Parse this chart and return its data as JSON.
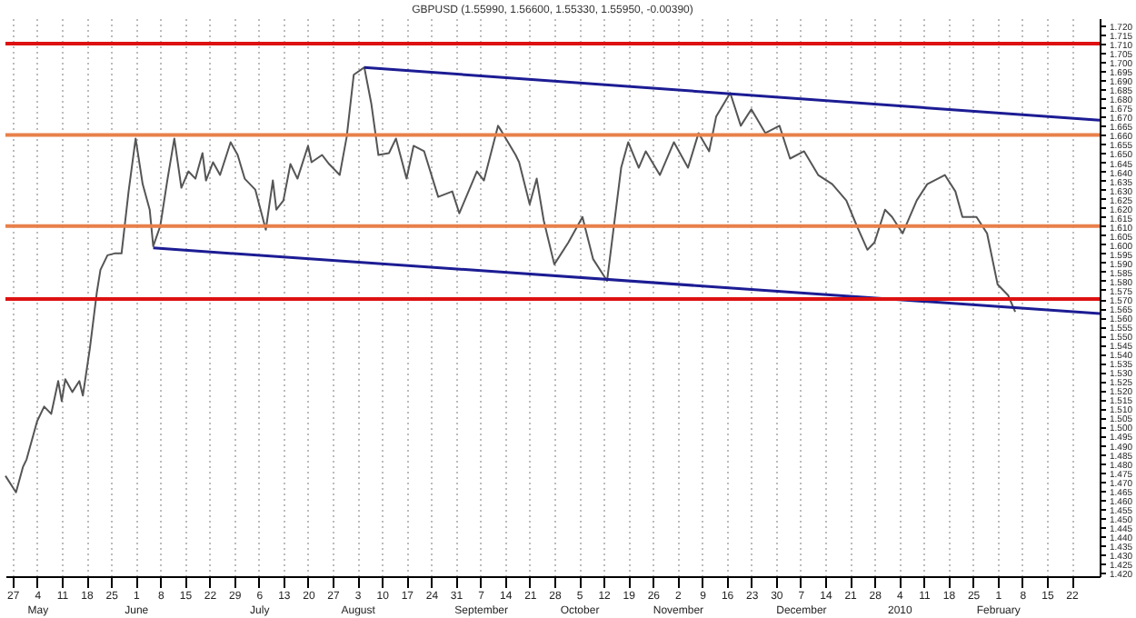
{
  "chart_data": {
    "type": "line",
    "title": "GBPUSD (1.55990, 1.56600, 1.55330, 1.55950, -0.00390)",
    "grid": "x",
    "xlim": [
      "2009-04-25",
      "2010-03-02"
    ],
    "ylim": [
      1.418,
      1.724
    ],
    "xticks": [
      {
        "value": "2009-04-27",
        "label": "27"
      },
      {
        "value": "2009-05-04",
        "label": "4\nMay"
      },
      {
        "value": "2009-05-11",
        "label": "11"
      },
      {
        "value": "2009-05-18",
        "label": "18"
      },
      {
        "value": "2009-05-25",
        "label": "25"
      },
      {
        "value": "2009-06-01",
        "label": "1\nJune"
      },
      {
        "value": "2009-06-08",
        "label": "8"
      },
      {
        "value": "2009-06-15",
        "label": "15"
      },
      {
        "value": "2009-06-22",
        "label": "22"
      },
      {
        "value": "2009-06-29",
        "label": "29"
      },
      {
        "value": "2009-07-06",
        "label": "6\nJuly"
      },
      {
        "value": "2009-07-13",
        "label": "13"
      },
      {
        "value": "2009-07-20",
        "label": "20"
      },
      {
        "value": "2009-07-27",
        "label": "27"
      },
      {
        "value": "2009-08-03",
        "label": "3\nAugust"
      },
      {
        "value": "2009-08-10",
        "label": "10"
      },
      {
        "value": "2009-08-17",
        "label": "17"
      },
      {
        "value": "2009-08-24",
        "label": "24"
      },
      {
        "value": "2009-08-31",
        "label": "31"
      },
      {
        "value": "2009-09-07",
        "label": "7\nSeptember"
      },
      {
        "value": "2009-09-14",
        "label": "14"
      },
      {
        "value": "2009-09-21",
        "label": "21"
      },
      {
        "value": "2009-09-28",
        "label": "28"
      },
      {
        "value": "2009-10-05",
        "label": "5\nOctober"
      },
      {
        "value": "2009-10-12",
        "label": "12"
      },
      {
        "value": "2009-10-19",
        "label": "19"
      },
      {
        "value": "2009-10-26",
        "label": "26"
      },
      {
        "value": "2009-11-02",
        "label": "2\nNovember"
      },
      {
        "value": "2009-11-09",
        "label": "9"
      },
      {
        "value": "2009-11-16",
        "label": "16"
      },
      {
        "value": "2009-11-23",
        "label": "23"
      },
      {
        "value": "2009-11-30",
        "label": "30"
      },
      {
        "value": "2009-12-07",
        "label": "7\nDecember"
      },
      {
        "value": "2009-12-14",
        "label": "14"
      },
      {
        "value": "2009-12-21",
        "label": "21"
      },
      {
        "value": "2009-12-28",
        "label": "28"
      },
      {
        "value": "2010-01-04",
        "label": "4\n2010"
      },
      {
        "value": "2010-01-11",
        "label": "11"
      },
      {
        "value": "2010-01-18",
        "label": "18"
      },
      {
        "value": "2010-01-25",
        "label": "25"
      },
      {
        "value": "2010-02-01",
        "label": "1\nFebruary"
      },
      {
        "value": "2010-02-08",
        "label": "8"
      },
      {
        "value": "2010-02-15",
        "label": "15"
      },
      {
        "value": "2010-02-22",
        "label": "22"
      }
    ],
    "yticks": [
      {
        "value": 1.42,
        "label": "1.420"
      },
      {
        "value": 1.425,
        "label": "1.425"
      },
      {
        "value": 1.43,
        "label": "1.430"
      },
      {
        "value": 1.435,
        "label": "1.435"
      },
      {
        "value": 1.44,
        "label": "1.440"
      },
      {
        "value": 1.445,
        "label": "1.445"
      },
      {
        "value": 1.45,
        "label": "1.450"
      },
      {
        "value": 1.455,
        "label": "1.455"
      },
      {
        "value": 1.46,
        "label": "1.460"
      },
      {
        "value": 1.465,
        "label": "1.465"
      },
      {
        "value": 1.47,
        "label": "1.470"
      },
      {
        "value": 1.475,
        "label": "1.475"
      },
      {
        "value": 1.48,
        "label": "1.480"
      },
      {
        "value": 1.485,
        "label": "1.485"
      },
      {
        "value": 1.49,
        "label": "1.490"
      },
      {
        "value": 1.495,
        "label": "1.495"
      },
      {
        "value": 1.5,
        "label": "1.500"
      },
      {
        "value": 1.505,
        "label": "1.505"
      },
      {
        "value": 1.51,
        "label": "1.510"
      },
      {
        "value": 1.515,
        "label": "1.515"
      },
      {
        "value": 1.52,
        "label": "1.520"
      },
      {
        "value": 1.525,
        "label": "1.525"
      },
      {
        "value": 1.53,
        "label": "1.530"
      },
      {
        "value": 1.535,
        "label": "1.535"
      },
      {
        "value": 1.54,
        "label": "1.540"
      },
      {
        "value": 1.545,
        "label": "1.545"
      },
      {
        "value": 1.55,
        "label": "1.550"
      },
      {
        "value": 1.555,
        "label": "1.555"
      },
      {
        "value": 1.56,
        "label": "1.560"
      },
      {
        "value": 1.565,
        "label": "1.565"
      },
      {
        "value": 1.57,
        "label": "1.570"
      },
      {
        "value": 1.575,
        "label": "1.575"
      },
      {
        "value": 1.58,
        "label": "1.580"
      },
      {
        "value": 1.585,
        "label": "1.585"
      },
      {
        "value": 1.59,
        "label": "1.590"
      },
      {
        "value": 1.595,
        "label": "1.595"
      },
      {
        "value": 1.6,
        "label": "1.600"
      },
      {
        "value": 1.605,
        "label": "1.605"
      },
      {
        "value": 1.61,
        "label": "1.610"
      },
      {
        "value": 1.615,
        "label": "1.615"
      },
      {
        "value": 1.62,
        "label": "1.620"
      },
      {
        "value": 1.625,
        "label": "1.625"
      },
      {
        "value": 1.63,
        "label": "1.630"
      },
      {
        "value": 1.635,
        "label": "1.635"
      },
      {
        "value": 1.64,
        "label": "1.640"
      },
      {
        "value": 1.645,
        "label": "1.645"
      },
      {
        "value": 1.65,
        "label": "1.650"
      },
      {
        "value": 1.655,
        "label": "1.655"
      },
      {
        "value": 1.66,
        "label": "1.660"
      },
      {
        "value": 1.665,
        "label": "1.665"
      },
      {
        "value": 1.67,
        "label": "1.670"
      },
      {
        "value": 1.675,
        "label": "1.675"
      },
      {
        "value": 1.68,
        "label": "1.680"
      },
      {
        "value": 1.685,
        "label": "1.685"
      },
      {
        "value": 1.69,
        "label": "1.690"
      },
      {
        "value": 1.695,
        "label": "1.695"
      },
      {
        "value": 1.7,
        "label": "1.700"
      },
      {
        "value": 1.705,
        "label": "1.705"
      },
      {
        "value": 1.71,
        "label": "1.710"
      },
      {
        "value": 1.715,
        "label": "1.715"
      },
      {
        "value": 1.72,
        "label": "1.720"
      }
    ],
    "ref_lines": [
      {
        "axis": "y",
        "value": 1.71,
        "color": "#dd1111"
      },
      {
        "axis": "y",
        "value": 1.66,
        "color": "#e8804a"
      },
      {
        "axis": "y",
        "value": 1.61,
        "color": "#e8804a"
      },
      {
        "axis": "y",
        "value": 1.57,
        "color": "#dd1111"
      }
    ],
    "series": [
      {
        "color": "#555555",
        "x": [
          "2009-04-25",
          "2009-04-28",
          "2009-04-30",
          "2009-05-01",
          "2009-05-04",
          "2009-05-06",
          "2009-05-08",
          "2009-05-10",
          "2009-05-11",
          "2009-05-12",
          "2009-05-14",
          "2009-05-16",
          "2009-05-17",
          "2009-05-19",
          "2009-05-21",
          "2009-05-22",
          "2009-05-24",
          "2009-05-26",
          "2009-05-28",
          "2009-05-30",
          "2009-06-01",
          "2009-06-03",
          "2009-06-05",
          "2009-06-06",
          "2009-06-08",
          "2009-06-10",
          "2009-06-12",
          "2009-06-14",
          "2009-06-16",
          "2009-06-18",
          "2009-06-20",
          "2009-06-21",
          "2009-06-23",
          "2009-06-25",
          "2009-06-28",
          "2009-06-30",
          "2009-07-02",
          "2009-07-05",
          "2009-07-08",
          "2009-07-10",
          "2009-07-11",
          "2009-07-13",
          "2009-07-15",
          "2009-07-17",
          "2009-07-20",
          "2009-07-21",
          "2009-07-24",
          "2009-07-26",
          "2009-07-29",
          "2009-07-31",
          "2009-08-02",
          "2009-08-05",
          "2009-08-07",
          "2009-08-09",
          "2009-08-12",
          "2009-08-14",
          "2009-08-17",
          "2009-08-19",
          "2009-08-22",
          "2009-08-26",
          "2009-08-30",
          "2009-09-01",
          "2009-09-06",
          "2009-09-08",
          "2009-09-12",
          "2009-09-13",
          "2009-09-17",
          "2009-09-18",
          "2009-09-21",
          "2009-09-23",
          "2009-09-25",
          "2009-09-28",
          "2009-10-02",
          "2009-10-06",
          "2009-10-09",
          "2009-10-13",
          "2009-10-17",
          "2009-10-19",
          "2009-10-22",
          "2009-10-24",
          "2009-10-28",
          "2009-11-01",
          "2009-11-05",
          "2009-11-08",
          "2009-11-11",
          "2009-11-13",
          "2009-11-17",
          "2009-11-20",
          "2009-11-23",
          "2009-11-27",
          "2009-12-01",
          "2009-12-04",
          "2009-12-08",
          "2009-12-12",
          "2009-12-16",
          "2009-12-20",
          "2009-12-23",
          "2009-12-26",
          "2009-12-28",
          "2009-12-31",
          "2010-01-02",
          "2010-01-05",
          "2010-01-09",
          "2010-01-12",
          "2010-01-17",
          "2010-01-20",
          "2010-01-22",
          "2010-01-26",
          "2010-01-29",
          "2010-02-01",
          "2010-02-04",
          "2010-02-06"
        ],
        "values": [
          1.473,
          1.464,
          1.478,
          1.482,
          1.503,
          1.511,
          1.507,
          1.525,
          1.514,
          1.526,
          1.519,
          1.525,
          1.517,
          1.543,
          1.574,
          1.586,
          1.594,
          1.595,
          1.595,
          1.629,
          1.658,
          1.633,
          1.619,
          1.599,
          1.61,
          1.635,
          1.658,
          1.631,
          1.64,
          1.636,
          1.65,
          1.635,
          1.645,
          1.638,
          1.656,
          1.649,
          1.636,
          1.63,
          1.608,
          1.635,
          1.619,
          1.624,
          1.644,
          1.636,
          1.654,
          1.645,
          1.649,
          1.644,
          1.638,
          1.659,
          1.693,
          1.697,
          1.677,
          1.649,
          1.65,
          1.658,
          1.636,
          1.654,
          1.651,
          1.626,
          1.629,
          1.617,
          1.64,
          1.635,
          1.665,
          1.662,
          1.649,
          1.645,
          1.622,
          1.636,
          1.613,
          1.589,
          1.601,
          1.615,
          1.592,
          1.58,
          1.642,
          1.656,
          1.642,
          1.651,
          1.638,
          1.656,
          1.642,
          1.661,
          1.651,
          1.67,
          1.683,
          1.665,
          1.674,
          1.661,
          1.665,
          1.647,
          1.651,
          1.638,
          1.633,
          1.624,
          1.61,
          1.597,
          1.601,
          1.619,
          1.615,
          1.606,
          1.624,
          1.633,
          1.638,
          1.629,
          1.615,
          1.615,
          1.606,
          1.578,
          1.572,
          1.563
        ]
      },
      {
        "type": "line",
        "color": "#1c1c94",
        "x": [
          "2009-08-05",
          "2010-03-02"
        ],
        "values": [
          1.697,
          1.668
        ]
      },
      {
        "type": "line",
        "color": "#1c1c94",
        "x": [
          "2009-06-06",
          "2010-03-02"
        ],
        "values": [
          1.598,
          1.562
        ]
      }
    ]
  }
}
